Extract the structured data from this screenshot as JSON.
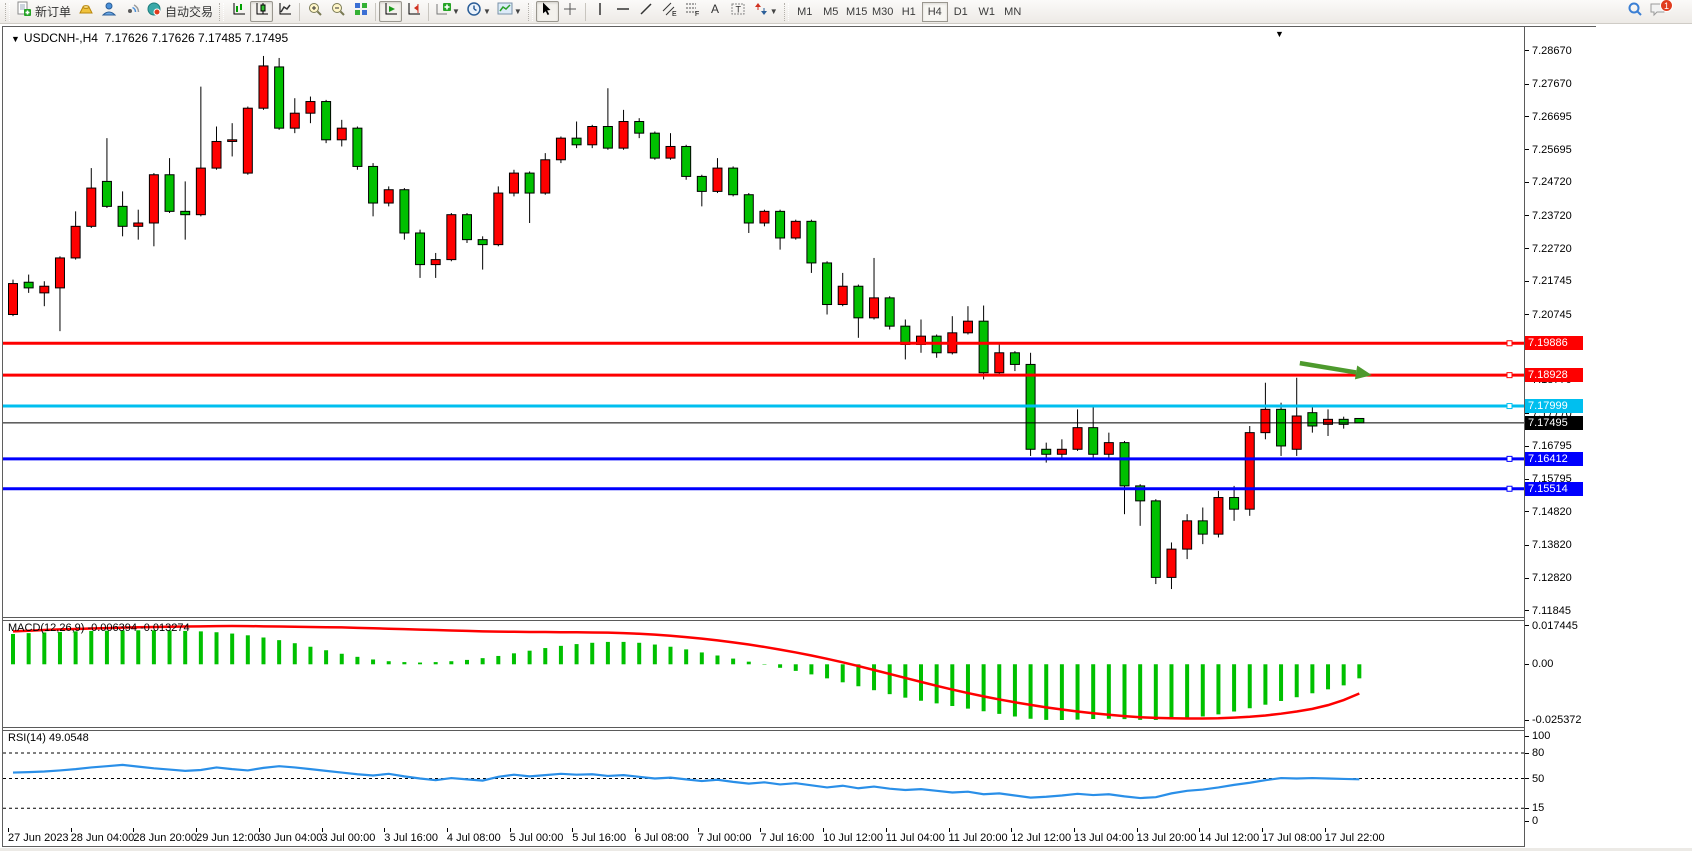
{
  "toolbar": {
    "new_order_label": "新订单",
    "autotrading_label": "自动交易",
    "timeframes": [
      "M1",
      "M5",
      "M15",
      "M30",
      "H1",
      "H4",
      "D1",
      "W1",
      "MN"
    ],
    "active_timeframe": "H4",
    "notification_count": "1"
  },
  "chart": {
    "symbol_period": "USDCNH-,H4",
    "quote_line": "7.17626 7.17626 7.17485 7.17495",
    "open": "7.17626",
    "high": "7.17626",
    "low": "7.17485",
    "close": "7.17495",
    "menu_arrow": "▼"
  },
  "chart_data": {
    "type": "candlestick",
    "symbol": "USDCNH-",
    "timeframe": "H4",
    "y_domain": [
      7.1166,
      7.2939
    ],
    "colors": {
      "bull": "#FE0000",
      "bear": "#00C000",
      "wick": "#000000",
      "rsi": "#2A8FE8",
      "macd_hist": "#00C000",
      "macd_signal": "#FE0000"
    },
    "price_axis_ticks": [
      "7.28670",
      "7.27670",
      "7.26695",
      "7.25695",
      "7.24720",
      "7.23720",
      "7.22720",
      "7.21745",
      "7.20745",
      "7.19770",
      "7.18770",
      "7.17770",
      "7.16795",
      "7.15795",
      "7.14820",
      "7.13820",
      "7.12820",
      "7.11845"
    ],
    "hlines": [
      {
        "label": "7.19886",
        "value": 7.19886,
        "color": "#FE0000",
        "width": 3
      },
      {
        "label": "7.18928",
        "value": 7.18928,
        "color": "#FE0000",
        "width": 3
      },
      {
        "label": "7.17999",
        "value": 7.17999,
        "color": "#00BFEF",
        "width": 3
      },
      {
        "label": "7.16412",
        "value": 7.16412,
        "color": "#0000FE",
        "width": 3
      },
      {
        "label": "7.15514",
        "value": 7.15514,
        "color": "#0000FE",
        "width": 3
      }
    ],
    "current_price": {
      "label": "7.17495",
      "value": 7.17495,
      "color": "#000000"
    },
    "annotation_arrow": {
      "bar1": 82.2,
      "price1": 7.1929,
      "bar2": 86.8,
      "price2": 7.1893,
      "color": "#4D9A2D"
    },
    "time_labels": [
      "27 Jun 2023",
      "28 Jun 04:00",
      "28 Jun 20:00",
      "29 Jun 12:00",
      "30 Jun 04:00",
      "3 Jul 00:00",
      "3 Jul 16:00",
      "4 Jul 08:00",
      "5 Jul 00:00",
      "5 Jul 16:00",
      "6 Jul 08:00",
      "7 Jul 00:00",
      "7 Jul 16:00",
      "10 Jul 12:00",
      "11 Jul 04:00",
      "11 Jul 20:00",
      "12 Jul 12:00",
      "13 Jul 04:00",
      "13 Jul 20:00",
      "14 Jul 12:00",
      "17 Jul 08:00",
      "17 Jul 22:00"
    ],
    "candles": [
      [
        7.2075,
        7.218,
        7.207,
        7.2168
      ],
      [
        7.2172,
        7.2195,
        7.214,
        7.2155
      ],
      [
        7.214,
        7.2175,
        7.21,
        7.216
      ],
      [
        7.2155,
        7.225,
        7.2025,
        7.2245
      ],
      [
        7.2245,
        7.2385,
        7.224,
        7.234
      ],
      [
        7.234,
        7.2515,
        7.2335,
        7.2455
      ],
      [
        7.2475,
        7.2605,
        7.2395,
        7.24
      ],
      [
        7.24,
        7.2445,
        7.231,
        7.234
      ],
      [
        7.234,
        7.239,
        7.23,
        7.235
      ],
      [
        7.235,
        7.25,
        7.228,
        7.2495
      ],
      [
        7.2495,
        7.2545,
        7.238,
        7.2385
      ],
      [
        7.2385,
        7.2475,
        7.23,
        7.2375
      ],
      [
        7.2375,
        7.276,
        7.237,
        7.2515
      ],
      [
        7.2515,
        7.264,
        7.251,
        7.2595
      ],
      [
        7.2595,
        7.265,
        7.255,
        7.26
      ],
      [
        7.25,
        7.27,
        7.2495,
        7.2695
      ],
      [
        7.2695,
        7.2852,
        7.269,
        7.2822
      ],
      [
        7.2819,
        7.2846,
        7.263,
        7.2635
      ],
      [
        7.2635,
        7.2725,
        7.262,
        7.268
      ],
      [
        7.268,
        7.273,
        7.265,
        7.2715
      ],
      [
        7.2715,
        7.272,
        7.259,
        7.26
      ],
      [
        7.26,
        7.266,
        7.258,
        7.2635
      ],
      [
        7.2635,
        7.264,
        7.251,
        7.252
      ],
      [
        7.252,
        7.253,
        7.237,
        7.241
      ],
      [
        7.241,
        7.246,
        7.24,
        7.245
      ],
      [
        7.245,
        7.2455,
        7.23,
        7.232
      ],
      [
        7.232,
        7.233,
        7.2185,
        7.2225
      ],
      [
        7.2225,
        7.226,
        7.2185,
        7.224
      ],
      [
        7.224,
        7.238,
        7.2235,
        7.2375
      ],
      [
        7.2375,
        7.238,
        7.229,
        7.23
      ],
      [
        7.23,
        7.231,
        7.221,
        7.2285
      ],
      [
        7.2285,
        7.246,
        7.228,
        7.244
      ],
      [
        7.244,
        7.251,
        7.243,
        7.25
      ],
      [
        7.25,
        7.2505,
        7.235,
        7.244
      ],
      [
        7.244,
        7.256,
        7.2435,
        7.254
      ],
      [
        7.254,
        7.261,
        7.253,
        7.2605
      ],
      [
        7.2605,
        7.2655,
        7.2575,
        7.2585
      ],
      [
        7.2585,
        7.2645,
        7.2575,
        7.264
      ],
      [
        7.264,
        7.2755,
        7.257,
        7.2575
      ],
      [
        7.2575,
        7.269,
        7.257,
        7.2655
      ],
      [
        7.2655,
        7.2665,
        7.2605,
        7.262
      ],
      [
        7.262,
        7.2625,
        7.254,
        7.2545
      ],
      [
        7.2545,
        7.262,
        7.254,
        7.258
      ],
      [
        7.258,
        7.2585,
        7.248,
        7.249
      ],
      [
        7.249,
        7.2495,
        7.24,
        7.2445
      ],
      [
        7.2445,
        7.2545,
        7.244,
        7.2515
      ],
      [
        7.2515,
        7.252,
        7.243,
        7.2435
      ],
      [
        7.2435,
        7.244,
        7.232,
        7.235
      ],
      [
        7.235,
        7.239,
        7.234,
        7.2385
      ],
      [
        7.2385,
        7.239,
        7.227,
        7.2305
      ],
      [
        7.2305,
        7.236,
        7.23,
        7.2355
      ],
      [
        7.2355,
        7.236,
        7.22,
        7.223
      ],
      [
        7.223,
        7.2235,
        7.2075,
        7.2105
      ],
      [
        7.2105,
        7.22,
        7.21,
        7.216
      ],
      [
        7.216,
        7.2165,
        7.2005,
        7.2065
      ],
      [
        7.2065,
        7.2245,
        7.206,
        7.2125
      ],
      [
        7.2125,
        7.213,
        7.203,
        7.204
      ],
      [
        7.204,
        7.206,
        7.194,
        7.1985
      ],
      [
        7.1985,
        7.206,
        7.196,
        7.201
      ],
      [
        7.201,
        7.2015,
        7.1945,
        7.196
      ],
      [
        7.196,
        7.207,
        7.1955,
        7.202
      ],
      [
        7.202,
        7.21,
        7.2015,
        7.2055
      ],
      [
        7.2055,
        7.2102,
        7.188,
        7.19
      ],
      [
        7.19,
        7.1985,
        7.1895,
        7.196
      ],
      [
        7.196,
        7.1965,
        7.1905,
        7.1925
      ],
      [
        7.1925,
        7.196,
        7.165,
        7.167
      ],
      [
        7.167,
        7.169,
        7.163,
        7.1655
      ],
      [
        7.1655,
        7.17,
        7.164,
        7.167
      ],
      [
        7.167,
        7.179,
        7.1665,
        7.1735
      ],
      [
        7.1735,
        7.18,
        7.1645,
        7.1655
      ],
      [
        7.1655,
        7.172,
        7.164,
        7.169
      ],
      [
        7.169,
        7.1695,
        7.1475,
        7.156
      ],
      [
        7.156,
        7.1565,
        7.144,
        7.1515
      ],
      [
        7.1515,
        7.152,
        7.1265,
        7.1285
      ],
      [
        7.1285,
        7.139,
        7.125,
        7.137
      ],
      [
        7.137,
        7.1475,
        7.134,
        7.1455
      ],
      [
        7.1455,
        7.1495,
        7.1385,
        7.1415
      ],
      [
        7.1415,
        7.1545,
        7.1405,
        7.1525
      ],
      [
        7.1525,
        7.156,
        7.1455,
        7.149
      ],
      [
        7.149,
        7.174,
        7.147,
        7.172
      ],
      [
        7.172,
        7.187,
        7.17,
        7.179
      ],
      [
        7.179,
        7.181,
        7.165,
        7.168
      ],
      [
        7.167,
        7.1885,
        7.165,
        7.177
      ],
      [
        7.178,
        7.18,
        7.172,
        7.174
      ],
      [
        7.1745,
        7.179,
        7.171,
        7.176
      ],
      [
        7.176,
        7.1768,
        7.1732,
        7.1745
      ],
      [
        7.17626,
        7.17626,
        7.17485,
        7.17495
      ]
    ],
    "indicators": {
      "macd": {
        "label": "MACD(12,26,9) -0.006394 -0.013274",
        "main_value": "-0.006394",
        "signal_value": "-0.013274",
        "axis_ticks": [
          {
            "label": "0.017445",
            "value": 0.017445
          },
          {
            "label": "0.00",
            "value": 0
          },
          {
            "label": "-0.025372",
            "value": -0.025372
          }
        ],
        "y_domain": [
          -0.02856,
          0.01972
        ],
        "histogram": [
          0.0138,
          0.0142,
          0.0145,
          0.0147,
          0.015,
          0.0152,
          0.0153,
          0.0154,
          0.0155,
          0.0155,
          0.0154,
          0.0152,
          0.015,
          0.0146,
          0.014,
          0.0132,
          0.0122,
          0.011,
          0.0096,
          0.008,
          0.0064,
          0.0048,
          0.0034,
          0.0022,
          0.0014,
          0.001,
          0.0008,
          0.001,
          0.0014,
          0.002,
          0.0028,
          0.0038,
          0.005,
          0.0062,
          0.0074,
          0.0084,
          0.0092,
          0.0098,
          0.0102,
          0.0102,
          0.0098,
          0.009,
          0.008,
          0.0068,
          0.0054,
          0.004,
          0.0026,
          0.0012,
          -0.0002,
          -0.0016,
          -0.003,
          -0.0046,
          -0.0064,
          -0.0082,
          -0.01,
          -0.0118,
          -0.0136,
          -0.0152,
          -0.0166,
          -0.0178,
          -0.019,
          -0.0202,
          -0.0214,
          -0.0226,
          -0.0238,
          -0.0248,
          -0.0253,
          -0.0254,
          -0.0252,
          -0.0249,
          -0.0248,
          -0.025,
          -0.0253,
          -0.0254,
          -0.0251,
          -0.0246,
          -0.0238,
          -0.0228,
          -0.0215,
          -0.02,
          -0.0184,
          -0.0167,
          -0.015,
          -0.0132,
          -0.0114,
          -0.0096,
          -0.0064
        ],
        "signal": [
          0.015,
          0.0153,
          0.0156,
          0.0159,
          0.0161,
          0.0163,
          0.0165,
          0.0167,
          0.0169,
          0.017,
          0.0171,
          0.0172,
          0.0173,
          0.0174,
          0.01744,
          0.0174,
          0.0173,
          0.0172,
          0.0171,
          0.017,
          0.0169,
          0.0168,
          0.0166,
          0.0164,
          0.0162,
          0.016,
          0.0158,
          0.0156,
          0.0154,
          0.0152,
          0.015,
          0.0149,
          0.0148,
          0.0147,
          0.0147,
          0.0146,
          0.0146,
          0.0145,
          0.0144,
          0.0142,
          0.0139,
          0.0135,
          0.013,
          0.0124,
          0.0117,
          0.0109,
          0.01,
          0.009,
          0.0079,
          0.0067,
          0.0054,
          0.004,
          0.0025,
          0.0009,
          -0.0008,
          -0.0026,
          -0.0044,
          -0.0062,
          -0.008,
          -0.0098,
          -0.0115,
          -0.0131,
          -0.0146,
          -0.016,
          -0.0173,
          -0.0185,
          -0.0196,
          -0.0206,
          -0.0215,
          -0.0223,
          -0.023,
          -0.0236,
          -0.0241,
          -0.0244,
          -0.0246,
          -0.0247,
          -0.0247,
          -0.0246,
          -0.0243,
          -0.0239,
          -0.0233,
          -0.0225,
          -0.0215,
          -0.0203,
          -0.0186,
          -0.0163,
          -0.0133
        ]
      },
      "rsi": {
        "label": "RSI(14) 49.0548",
        "value": "49.0548",
        "axis_ticks": [
          {
            "label": "100",
            "value": 100
          },
          {
            "label": "80",
            "value": 80
          },
          {
            "label": "50",
            "value": 50
          },
          {
            "label": "15",
            "value": 15
          },
          {
            "label": "0",
            "value": 0
          }
        ],
        "levels": [
          80,
          50,
          15
        ],
        "values": [
          57.0,
          57.5,
          58.2,
          59.5,
          61.0,
          63.0,
          64.5,
          66.0,
          64.0,
          62.0,
          60.5,
          59.0,
          60.0,
          63.0,
          61.0,
          59.5,
          62.5,
          64.5,
          63.0,
          61.0,
          59.0,
          57.0,
          55.0,
          53.5,
          55.5,
          52.5,
          50.0,
          48.0,
          50.5,
          49.0,
          47.5,
          52.0,
          54.5,
          52.5,
          54.0,
          55.5,
          54.5,
          55.0,
          53.0,
          54.0,
          52.0,
          50.0,
          51.0,
          49.0,
          47.0,
          48.5,
          46.0,
          44.0,
          45.5,
          43.0,
          44.5,
          42.0,
          39.5,
          41.5,
          38.5,
          40.5,
          38.0,
          36.5,
          37.5,
          35.5,
          33.5,
          34.5,
          31.5,
          32.5,
          30.0,
          27.5,
          28.5,
          30.0,
          32.0,
          30.5,
          31.5,
          29.0,
          27.0,
          28.0,
          32.5,
          35.5,
          37.0,
          39.5,
          42.5,
          45.0,
          48.0,
          50.5,
          50.0,
          50.5,
          50.0,
          49.5,
          49.05
        ]
      }
    }
  }
}
